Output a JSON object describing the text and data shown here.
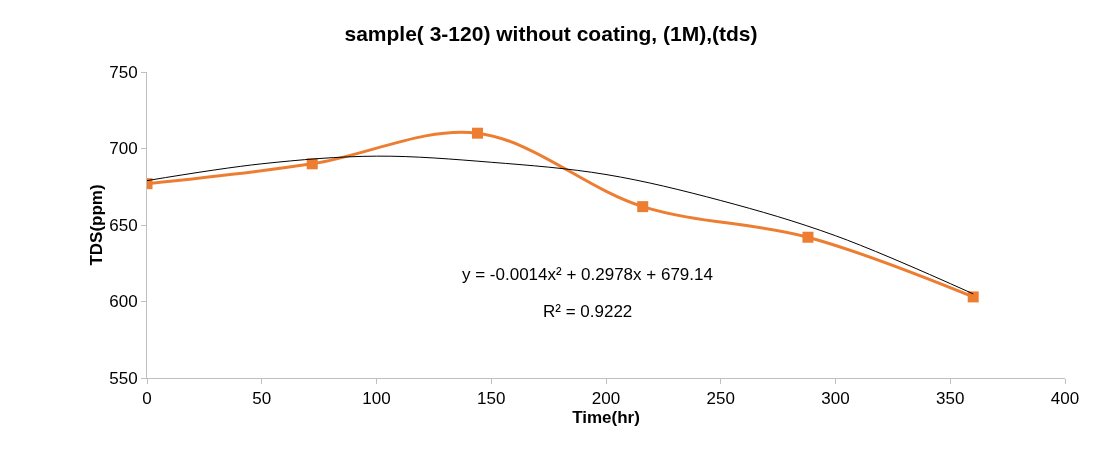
{
  "chart_data": {
    "type": "line",
    "title": "sample( 3-120) without coating, (1M),(tds)",
    "xlabel": "Time(hr)",
    "ylabel": "TDS(ppm)",
    "x": [
      0,
      72,
      144,
      216,
      288,
      360
    ],
    "series": [
      {
        "color": "#ed7d31",
        "values": [
          677,
          690,
          710,
          662,
          642,
          603
        ],
        "marker": "square"
      },
      {
        "type": "line",
        "color": "#000000",
        "x": [
          0,
          50,
          100,
          150,
          200,
          250,
          300,
          360
        ],
        "values": [
          679,
          690,
          695,
          691,
          683,
          666,
          643,
          605
        ],
        "marker": "none"
      }
    ],
    "xlim": [
      0,
      400
    ],
    "xticks": [
      0,
      50,
      100,
      150,
      200,
      250,
      300,
      350,
      400
    ],
    "ylim": [
      550,
      750
    ],
    "yticks": [
      550,
      600,
      650,
      700,
      750
    ],
    "annotations": [
      "y = -0.0014x² + 0.2978x + 679.14",
      "R² = 0.9222"
    ]
  }
}
